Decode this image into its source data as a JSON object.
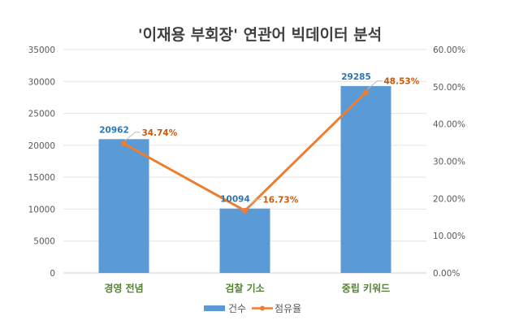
{
  "chart_data": {
    "type": "bar+line",
    "title": "'이재용 부회장' 연관어 빅데이터 분석",
    "categories": [
      "경영 전념",
      "검찰 기소",
      "중립 키워드"
    ],
    "series": [
      {
        "name": "건수",
        "type": "bar",
        "axis": "left",
        "values": [
          20962,
          10094,
          29285
        ],
        "labels": [
          "20962",
          "10094",
          "29285"
        ],
        "color": "#5b9bd5"
      },
      {
        "name": "점유율",
        "type": "line",
        "axis": "right",
        "values": [
          34.74,
          16.73,
          48.53
        ],
        "labels": [
          "34.74%",
          "16.73%",
          "48.53%"
        ],
        "color": "#ed7d31"
      }
    ],
    "left_axis": {
      "ylim": [
        0,
        35000
      ],
      "ticks": [
        "0",
        "5000",
        "10000",
        "15000",
        "20000",
        "25000",
        "30000",
        "35000"
      ]
    },
    "right_axis": {
      "ylim": [
        0,
        60
      ],
      "ticks": [
        "0.00%",
        "10.00%",
        "20.00%",
        "30.00%",
        "40.00%",
        "50.00%",
        "60.00%"
      ]
    },
    "grid": true,
    "legend": "bottom",
    "category_label_color": "#548235",
    "bar_label_color": "#2e75b6",
    "line_label_color": "#c55a11"
  }
}
